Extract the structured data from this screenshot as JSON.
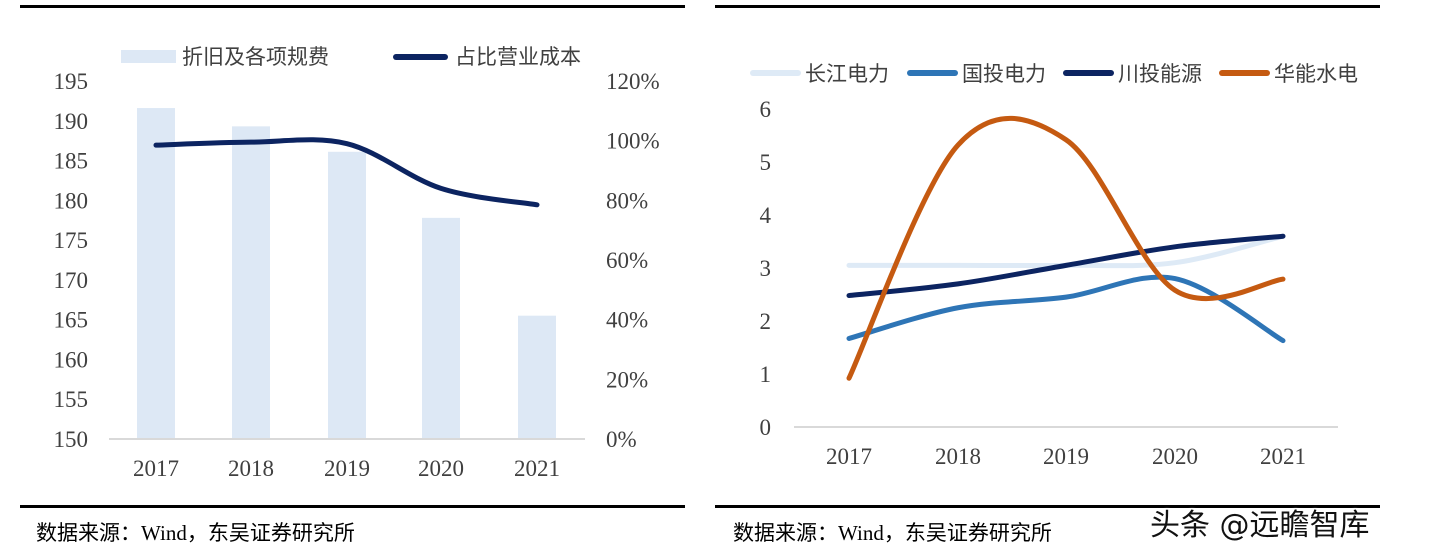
{
  "chart_data": [
    {
      "type": "bar+line",
      "categories": [
        "2017",
        "2018",
        "2019",
        "2020",
        "2021"
      ],
      "series": [
        {
          "name": "折旧及各项规费",
          "type": "bar",
          "axis": "left",
          "values": [
            191.6,
            189.3,
            186.1,
            177.8,
            165.5
          ],
          "color": "#dde8f5"
        },
        {
          "name": "占比营业成本",
          "type": "line",
          "axis": "right",
          "values": [
            98.5,
            99.5,
            99.0,
            84.0,
            78.5
          ],
          "color": "#0c2461"
        }
      ],
      "y_left": {
        "ylim": [
          150,
          195
        ],
        "ticks": [
          "150",
          "155",
          "160",
          "165",
          "170",
          "175",
          "180",
          "185",
          "190",
          "195"
        ]
      },
      "y_right": {
        "ylim": [
          0,
          120
        ],
        "ticks": [
          "0%",
          "20%",
          "40%",
          "60%",
          "80%",
          "100%",
          "120%"
        ]
      },
      "grid": false,
      "legend": "top"
    },
    {
      "type": "line",
      "categories": [
        "2017",
        "2018",
        "2019",
        "2020",
        "2021"
      ],
      "series": [
        {
          "name": "长江电力",
          "values": [
            3.05,
            3.05,
            3.05,
            3.1,
            3.6
          ],
          "color": "#deeaf6"
        },
        {
          "name": "国投电力",
          "values": [
            1.67,
            2.25,
            2.45,
            2.8,
            1.63
          ],
          "color": "#2e75b6"
        },
        {
          "name": "川投能源",
          "values": [
            2.48,
            2.7,
            3.05,
            3.4,
            3.6
          ],
          "color": "#0c2461"
        },
        {
          "name": "华能水电",
          "values": [
            0.92,
            5.32,
            5.42,
            2.58,
            2.79
          ],
          "color": "#c55a11"
        }
      ],
      "ylim": [
        0,
        6
      ],
      "yticks": [
        "0",
        "1",
        "2",
        "3",
        "4",
        "5",
        "6"
      ],
      "grid": false,
      "legend": "top"
    }
  ],
  "footer": {
    "left_source": "数据来源：Wind，东吴证券研究所",
    "right_source": "数据来源：Wind，东吴证券研究所",
    "watermark": "头条 @远瞻智库"
  }
}
